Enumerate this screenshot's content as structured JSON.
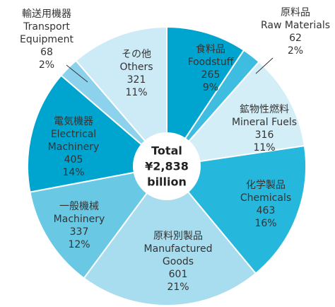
{
  "chart_data": {
    "type": "donut",
    "categories_ja": [
      "食料品",
      "原料品",
      "鉱物性燃料",
      "化学製品",
      "原料別製品",
      "一般機械",
      "電気機器",
      "輸送用機器",
      "その他"
    ],
    "categories": [
      "Foodstuff",
      "Raw Materials",
      "Mineral Fuels",
      "Chemicals",
      "Manufactured\nGoods",
      "Machinery",
      "Electrical\nMachinery",
      "Transport\nEquipment",
      "Others"
    ],
    "values": [
      265,
      62,
      316,
      463,
      601,
      337,
      405,
      68,
      321
    ],
    "percent_labels": [
      "9%",
      "2%",
      "11%",
      "16%",
      "21%",
      "12%",
      "14%",
      "2%",
      "11%"
    ],
    "colors": [
      "#00a5cf",
      "#3fbde0",
      "#d4eef8",
      "#25b7dc",
      "#a8dcef",
      "#69c9e5",
      "#00a5cf",
      "#8cd2ec",
      "#cdebf7"
    ],
    "center_label": [
      "Total",
      "¥2,838",
      "billion"
    ]
  }
}
